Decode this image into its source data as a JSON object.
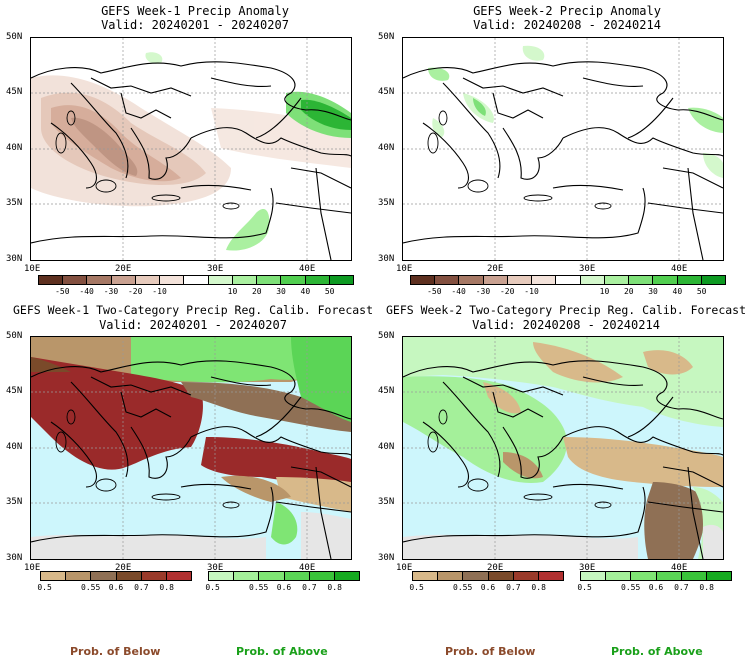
{
  "panels": [
    {
      "title": "GEFS Week-1 Precip Anomaly",
      "valid": "Valid: 20240201 - 20240207"
    },
    {
      "title": "GEFS Week-2 Precip Anomaly",
      "valid": "Valid: 20240208 - 20240214"
    },
    {
      "title": "GEFS Week-1 Two-Category Precip Reg. Calib. Forecast",
      "valid": "Valid: 20240201 - 20240207"
    },
    {
      "title": "GEFS Week-2 Two-Category Precip Reg. Calib. Forecast",
      "valid": "Valid: 20240208 - 20240214"
    }
  ],
  "axes": {
    "lat_labels": [
      "50N",
      "45N",
      "40N",
      "35N",
      "30N"
    ],
    "lon_labels": [
      "10E",
      "20E",
      "30E",
      "40E"
    ]
  },
  "anomaly_colorbar": {
    "labels": [
      "-50",
      "-40",
      "-30",
      "-20",
      "-10",
      "10",
      "20",
      "30",
      "40",
      "50"
    ],
    "colors": [
      "#5e3020",
      "#835040",
      "#a67865",
      "#c9a191",
      "#e7cbbd",
      "#f3e2da",
      "#ffffff",
      "#d4f8cc",
      "#aaf0a0",
      "#7ee078",
      "#52cf50",
      "#2cb535",
      "#0d9a22"
    ]
  },
  "below_colorbar": {
    "labels": [
      "0.5",
      "0.55",
      "0.6",
      "0.7",
      "0.8"
    ],
    "colors": [
      "#d8b98a",
      "#b9966a",
      "#8f7055",
      "#7a4a2a",
      "#9a3a2a",
      "#b13030"
    ]
  },
  "above_colorbar": {
    "labels": [
      "0.5",
      "0.55",
      "0.6",
      "0.7",
      "0.8"
    ],
    "colors": [
      "#c6f7c0",
      "#a4f09a",
      "#7fe574",
      "#5bd556",
      "#3ac43a",
      "#16aa20"
    ]
  },
  "footer": {
    "below": "Prob. of Below",
    "above": "Prob. of Above"
  },
  "colors": {
    "sea": "#cdf6fc",
    "below_text": "#8b4a2b",
    "above_text": "#1aa01a",
    "missing": "#e6e6e6"
  }
}
